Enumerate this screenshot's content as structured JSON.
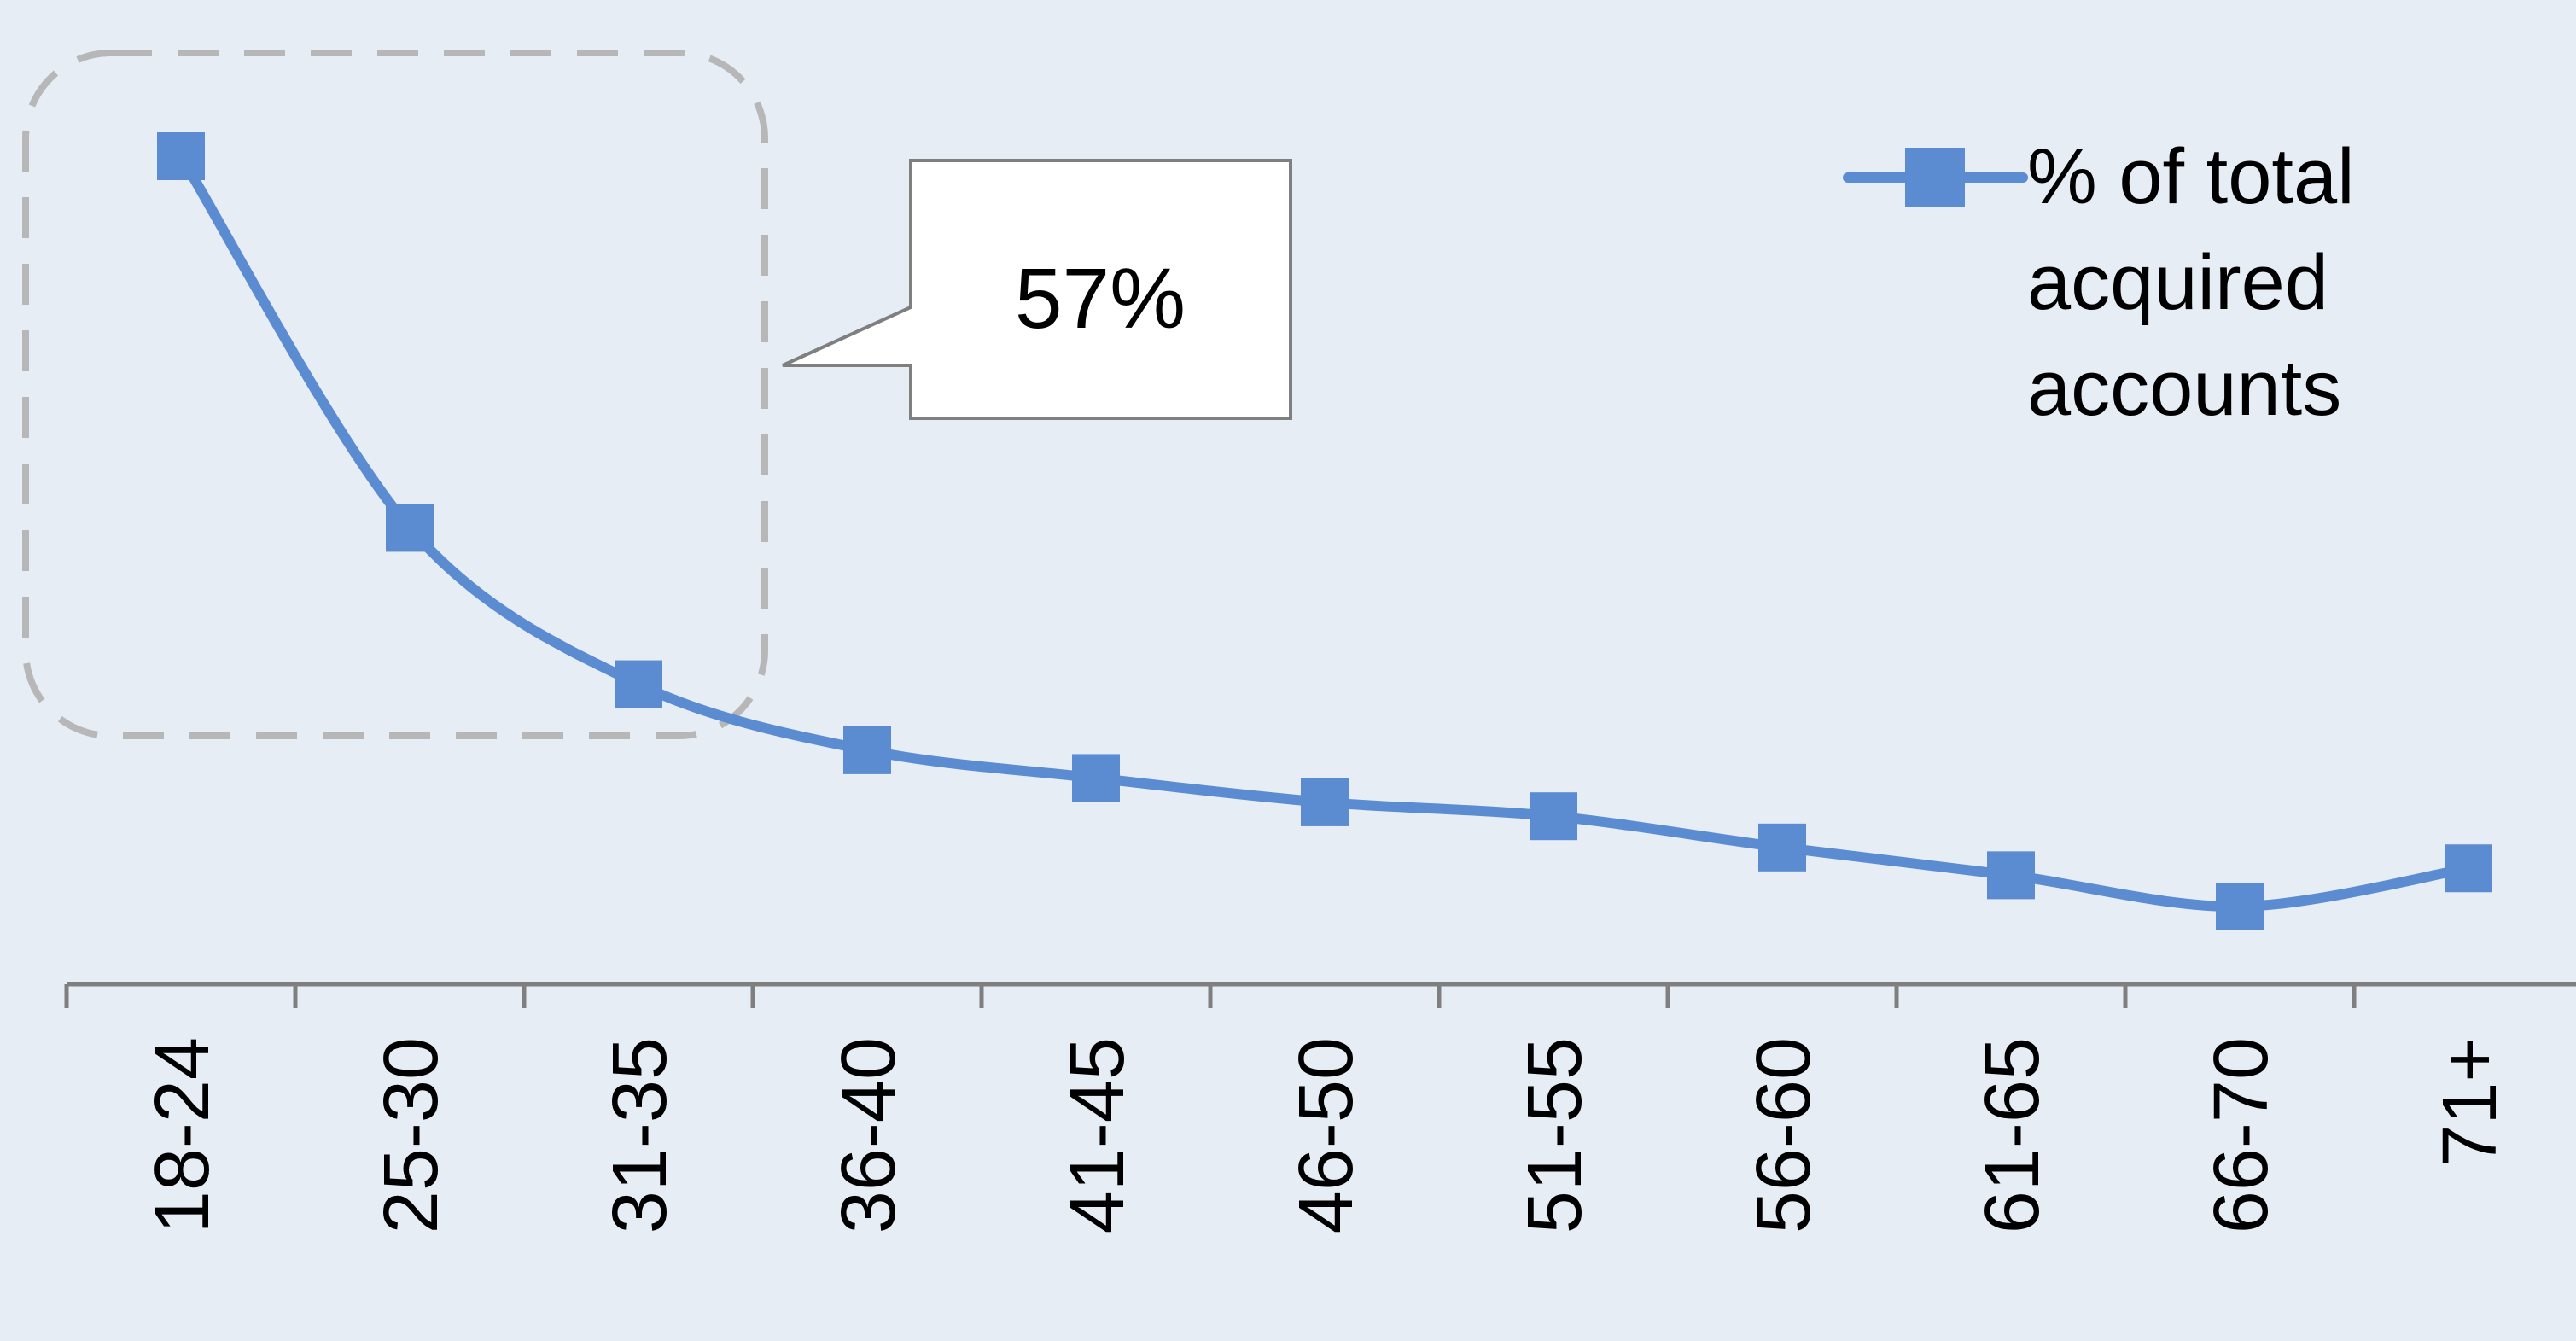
{
  "chart_data": {
    "type": "line",
    "title": "",
    "xlabel": "",
    "ylabel": "",
    "categories": [
      "18-24",
      "25-30",
      "31-35",
      "36-40",
      "41-45",
      "46-50",
      "51-55",
      "56-60",
      "61-65",
      "66-70",
      "71+"
    ],
    "series": [
      {
        "name": "% of total acquired accounts",
        "values": [
          100,
          46.5,
          24,
          14.5,
          10.5,
          7,
          5,
          0.5,
          -3.5,
          -8,
          -2.5
        ],
        "color": "#5b8bd0",
        "marker": "square"
      }
    ],
    "ylim": [
      -19,
      120
    ],
    "y_axis_visible": false,
    "grid": false,
    "legend_position": "top-right",
    "legend_label_lines": [
      "% of total",
      "acquired",
      "accounts"
    ],
    "annotations": [
      {
        "text": "57%",
        "type": "callout",
        "highlight_categories": [
          "18-24",
          "25-30",
          "31-35"
        ]
      }
    ],
    "colors": {
      "background": "#e6edf4",
      "line": "#5b8bd0",
      "axis": "#7f7f7f",
      "highlight_box": "#b7b7b7"
    }
  }
}
